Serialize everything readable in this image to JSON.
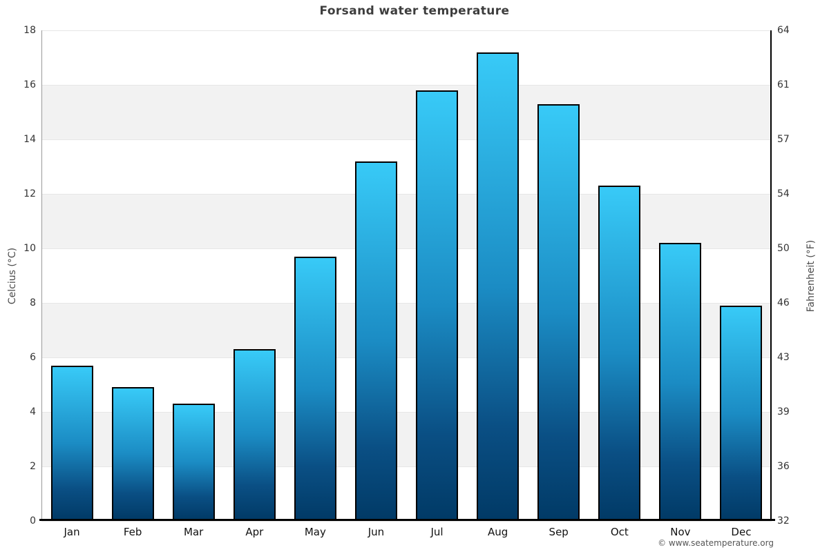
{
  "chart_data": {
    "type": "bar",
    "title": "Forsand water temperature",
    "categories": [
      "Jan",
      "Feb",
      "Mar",
      "Apr",
      "May",
      "Jun",
      "Jul",
      "Aug",
      "Sep",
      "Oct",
      "Nov",
      "Dec"
    ],
    "values": [
      5.7,
      4.9,
      4.3,
      6.3,
      9.7,
      13.2,
      15.8,
      17.2,
      15.3,
      12.3,
      10.2,
      7.9
    ],
    "series_name": "Water temperature",
    "ylabel_left": "Celcius (°C)",
    "ylabel_right": "Fahrenheit (°F)",
    "ylim": [
      0,
      18
    ],
    "yticks_celsius": [
      0,
      2,
      4,
      6,
      8,
      10,
      12,
      14,
      16,
      18
    ],
    "yticks_fahrenheit": [
      32,
      36,
      39,
      43,
      46,
      50,
      54,
      57,
      61,
      64
    ],
    "grid": true,
    "legend": "none",
    "plot_bands_celsius": [
      [
        2,
        4
      ],
      [
        6,
        8
      ],
      [
        10,
        12
      ],
      [
        14,
        16
      ]
    ]
  },
  "colors": {
    "bar_gradient_top": "#38caf7",
    "bar_gradient_bottom": "#013a66",
    "bar_border": "#000000",
    "band": "#f2f2f2",
    "gridline": "#e6e6e6",
    "left_spine": "#9a9a9a",
    "right_spine": "#000000",
    "title_text": "#3d3d3d",
    "tick_text": "#333333"
  },
  "footer": {
    "copyright": "© www.seatemperature.org"
  }
}
